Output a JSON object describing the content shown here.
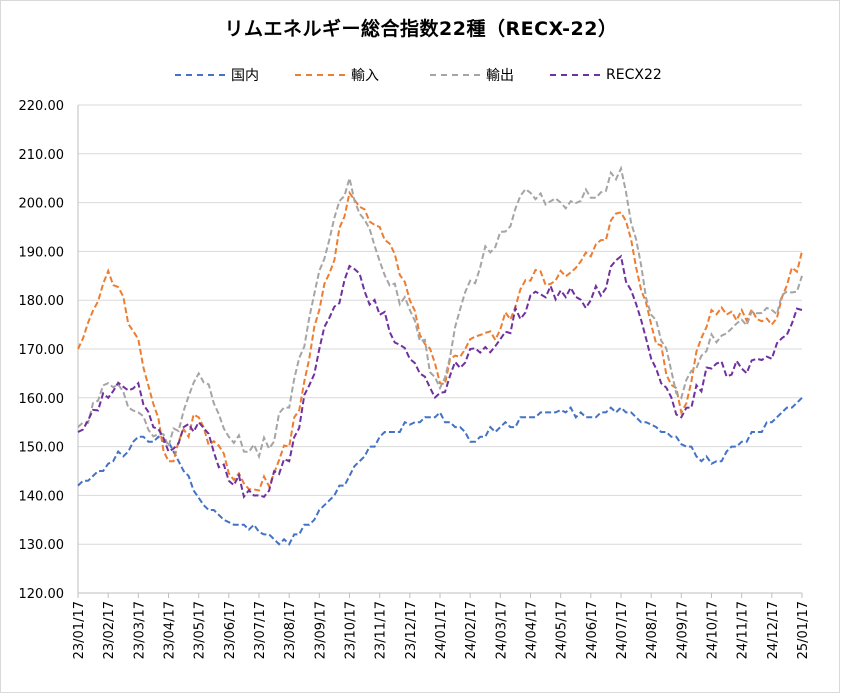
{
  "chart_data": {
    "type": "line",
    "title": "リムエネルギー総合指数22種（RECX-22）",
    "xlabel": "",
    "ylabel": "",
    "ylim": [
      120,
      220
    ],
    "yticks": [
      "120.00",
      "130.00",
      "140.00",
      "150.00",
      "160.00",
      "170.00",
      "180.00",
      "190.00",
      "200.00",
      "210.00",
      "220.00"
    ],
    "categories": [
      "23/01/17",
      "23/02/17",
      "23/03/17",
      "23/04/17",
      "23/05/17",
      "23/06/17",
      "23/07/17",
      "23/08/17",
      "23/09/17",
      "23/10/17",
      "23/11/17",
      "23/12/17",
      "24/01/17",
      "24/02/17",
      "24/03/17",
      "24/04/17",
      "24/05/17",
      "24/06/17",
      "24/07/17",
      "24/08/17",
      "24/09/17",
      "24/10/17",
      "24/11/17",
      "24/12/17",
      "25/01/17"
    ],
    "grid": true,
    "legend_position": "top",
    "series": [
      {
        "name": "国内",
        "color": "#4472C4",
        "values": [
          142,
          146.5,
          152,
          151,
          139.5,
          134.5,
          132.5,
          130,
          137,
          144,
          152,
          154.5,
          157,
          151,
          154,
          156,
          157.5,
          156,
          158,
          154.5,
          150.5,
          146.5,
          151,
          155,
          160
        ]
      },
      {
        "name": "輸入",
        "color": "#ED7D31",
        "values": [
          170,
          186,
          172,
          147,
          156,
          144.5,
          141,
          150,
          178,
          202,
          195,
          180,
          163,
          172,
          174,
          184,
          186,
          189,
          198,
          175,
          157,
          178,
          178,
          175,
          190
        ]
      },
      {
        "name": "輸出",
        "color": "#A5A5A5",
        "values": [
          154,
          163,
          157,
          150,
          165,
          152,
          148,
          158,
          186,
          205,
          188,
          178,
          162,
          184,
          194,
          202,
          200,
          201,
          207,
          177,
          160,
          173,
          176,
          178,
          185
        ]
      },
      {
        "name": "RECX22",
        "color": "#7030A0",
        "values": [
          153,
          160,
          163,
          149,
          155,
          143,
          140,
          147,
          170,
          187,
          177,
          168,
          161,
          170,
          172,
          181,
          182,
          180,
          189,
          168,
          156,
          166,
          166,
          168,
          178
        ]
      }
    ]
  }
}
